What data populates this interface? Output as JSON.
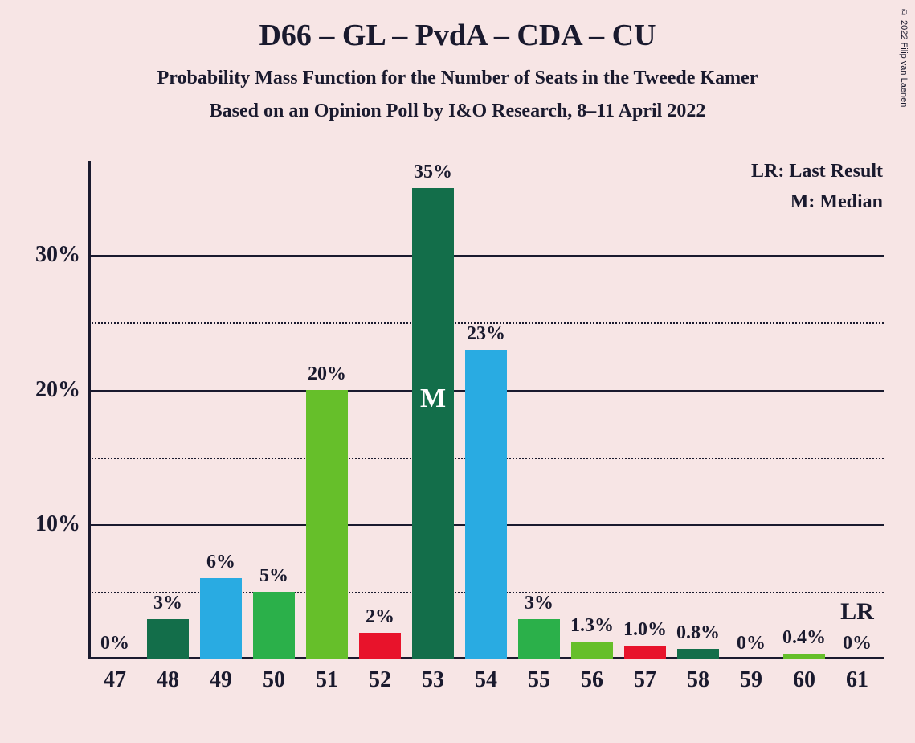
{
  "title": "D66 – GL – PvdA – CDA – CU",
  "title_fontsize": 38,
  "subtitle1": "Probability Mass Function for the Number of Seats in the Tweede Kamer",
  "subtitle2": "Based on an Opinion Poll by I&O Research, 8–11 April 2022",
  "subtitle_fontsize": 24,
  "legend_lr": "LR: Last Result",
  "legend_m": "M: Median",
  "legend_fontsize": 24,
  "copyright": "© 2022 Filip van Laenen",
  "chart": {
    "type": "bar",
    "background_color": "#f7e5e5",
    "axis_color": "#1a1a2e",
    "grid_solid_color": "#1a1a2e",
    "grid_dotted_color": "#1a1a2e",
    "ylim": [
      0,
      37
    ],
    "y_major_ticks": [
      10,
      20,
      30
    ],
    "y_minor_ticks": [
      5,
      15,
      25
    ],
    "y_tick_labels": [
      "10%",
      "20%",
      "30%"
    ],
    "y_tick_fontsize": 28,
    "x_categories": [
      "47",
      "48",
      "49",
      "50",
      "51",
      "52",
      "53",
      "54",
      "55",
      "56",
      "57",
      "58",
      "59",
      "60",
      "61"
    ],
    "x_tick_fontsize": 28,
    "bar_width": 0.78,
    "bars": [
      {
        "x": "47",
        "value": 0,
        "label": "0%",
        "color": "#136e4a"
      },
      {
        "x": "48",
        "value": 3,
        "label": "3%",
        "color": "#136e4a"
      },
      {
        "x": "49",
        "value": 6,
        "label": "6%",
        "color": "#29abe2"
      },
      {
        "x": "50",
        "value": 5,
        "label": "5%",
        "color": "#2bb04a"
      },
      {
        "x": "51",
        "value": 20,
        "label": "20%",
        "color": "#66bf2a"
      },
      {
        "x": "52",
        "value": 2,
        "label": "2%",
        "color": "#e8132b"
      },
      {
        "x": "53",
        "value": 35,
        "label": "35%",
        "color": "#136e4a",
        "median": true,
        "median_label": "M"
      },
      {
        "x": "54",
        "value": 23,
        "label": "23%",
        "color": "#29abe2"
      },
      {
        "x": "55",
        "value": 3,
        "label": "3%",
        "color": "#2bb04a"
      },
      {
        "x": "56",
        "value": 1.3,
        "label": "1.3%",
        "color": "#66bf2a"
      },
      {
        "x": "57",
        "value": 1.0,
        "label": "1.0%",
        "color": "#e8132b"
      },
      {
        "x": "58",
        "value": 0.8,
        "label": "0.8%",
        "color": "#136e4a"
      },
      {
        "x": "59",
        "value": 0,
        "label": "0%",
        "color": "#29abe2"
      },
      {
        "x": "60",
        "value": 0.4,
        "label": "0.4%",
        "color": "#66bf2a"
      },
      {
        "x": "61",
        "value": 0,
        "label": "0%",
        "color": "#136e4a",
        "lr": true,
        "lr_label": "LR"
      }
    ],
    "bar_label_fontsize": 24,
    "median_fontsize": 34,
    "lr_fontsize": 30
  }
}
